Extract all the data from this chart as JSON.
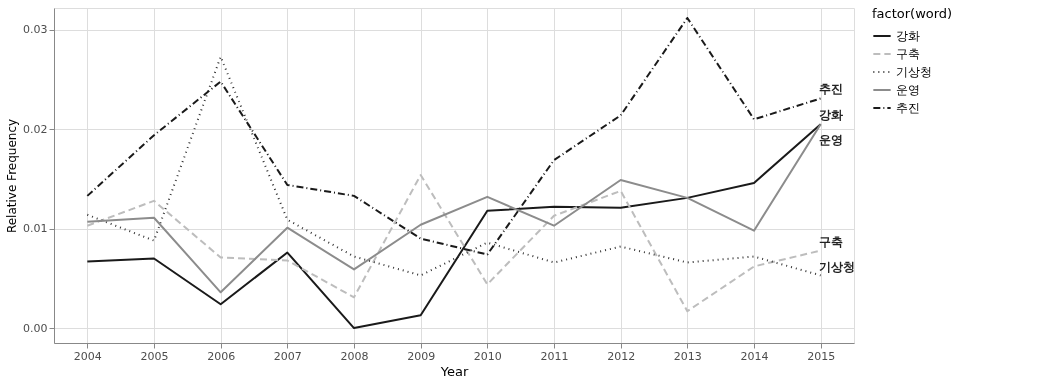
{
  "chart_data": {
    "type": "line",
    "xlabel": "Year",
    "ylabel": "Relative Frequency",
    "legend_title": "factor(word)",
    "categories": [
      "2004",
      "2005",
      "2006",
      "2007",
      "2008",
      "2009",
      "2010",
      "2011",
      "2012",
      "2013",
      "2014",
      "2015"
    ],
    "series": [
      {
        "name": "강화",
        "color": "#1a1a1a",
        "line_style": "solid",
        "values": [
          0.0067,
          0.007,
          0.0024,
          0.0076,
          0.0,
          0.0013,
          0.0118,
          0.0122,
          0.0121,
          0.0131,
          0.0146,
          0.0205
        ]
      },
      {
        "name": "구축",
        "color": "#bdbdbd",
        "line_style": "dashed",
        "values": [
          0.0103,
          0.0128,
          0.0071,
          0.0068,
          0.0031,
          0.0154,
          0.0044,
          0.0113,
          0.0138,
          0.0017,
          0.0062,
          0.0078
        ]
      },
      {
        "name": "기상청",
        "color": "#333333",
        "line_style": "dotted",
        "values": [
          0.0114,
          0.0088,
          0.0273,
          0.0109,
          0.0072,
          0.0053,
          0.0086,
          0.0066,
          0.0082,
          0.0066,
          0.0072,
          0.0053
        ]
      },
      {
        "name": "운영",
        "color": "#8c8c8c",
        "line_style": "solid",
        "values": [
          0.0107,
          0.0111,
          0.0036,
          0.0101,
          0.0059,
          0.0104,
          0.0132,
          0.0103,
          0.0149,
          0.0131,
          0.0098,
          0.0205
        ]
      },
      {
        "name": "추진",
        "color": "#1a1a1a",
        "line_style": "dashdot",
        "values": [
          0.0133,
          0.0194,
          0.0248,
          0.0144,
          0.0133,
          0.009,
          0.0074,
          0.0169,
          0.0214,
          0.0312,
          0.021,
          0.0231
        ]
      }
    ],
    "ylim": [
      -0.0015,
      0.0322
    ],
    "yticks": [
      {
        "value": 0,
        "label": "0.00"
      },
      {
        "value": 0.01,
        "label": "0.01"
      },
      {
        "value": 0.02,
        "label": "0.02"
      },
      {
        "value": 0.03,
        "label": "0.03"
      }
    ],
    "grid": true,
    "legend": "right"
  }
}
